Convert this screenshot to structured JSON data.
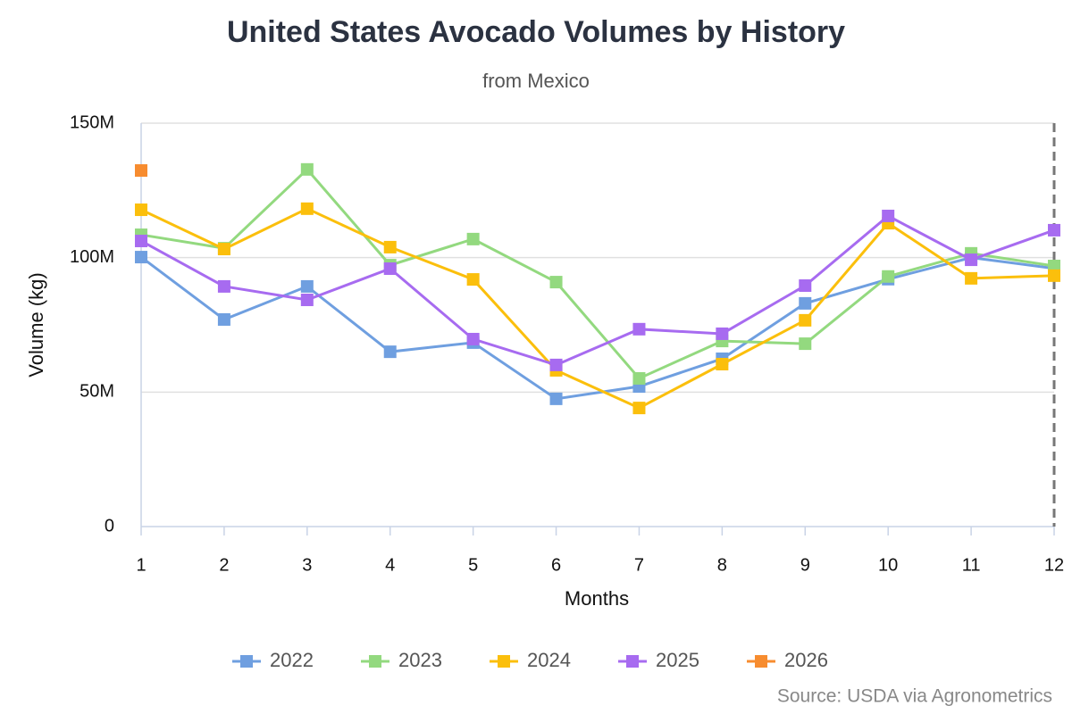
{
  "chart_data": {
    "type": "line",
    "title": "United States Avocado Volumes by History",
    "subtitle": "from Mexico",
    "x_label": "Months",
    "y_label": "Volume (kg)",
    "source": "Source: USDA via Agronometrics",
    "x": [
      1,
      2,
      3,
      4,
      5,
      6,
      7,
      8,
      9,
      10,
      11,
      12
    ],
    "xlim": [
      1,
      12
    ],
    "xticks": [
      1,
      2,
      3,
      4,
      5,
      6,
      7,
      8,
      9,
      10,
      11,
      12
    ],
    "ylim": [
      0,
      150000000
    ],
    "yticks": [
      0,
      {
        "value": 50000000,
        "label": "50M"
      },
      {
        "value": 100000000,
        "label": "100M"
      },
      {
        "value": 150000000,
        "label": "150M"
      }
    ],
    "grid": true,
    "legend": "bottom",
    "series": [
      {
        "name": "2022",
        "color": "#6f9fe0",
        "values": [
          100200000,
          77000000,
          89300000,
          65000000,
          68400000,
          47500000,
          52100000,
          62400000,
          83000000,
          92000000,
          100000000,
          96000000
        ]
      },
      {
        "name": "2023",
        "color": "#93d97f",
        "values": [
          108500000,
          103500000,
          132800000,
          97200000,
          106900000,
          90900000,
          55100000,
          69000000,
          68000000,
          93000000,
          101600000,
          96900000
        ]
      },
      {
        "name": "2024",
        "color": "#fbbf0c",
        "values": [
          117800000,
          103200000,
          118200000,
          103900000,
          91900000,
          58100000,
          44100000,
          60400000,
          76700000,
          112800000,
          92300000,
          93300000
        ]
      },
      {
        "name": "2025",
        "color": "#a76bf0",
        "values": [
          106200000,
          89300000,
          84300000,
          95900000,
          69700000,
          60100000,
          73400000,
          71700000,
          89600000,
          115500000,
          99200000,
          110200000
        ]
      },
      {
        "name": "2026",
        "color": "#f78c2f",
        "values": [
          132400000,
          null,
          null,
          null,
          null,
          null,
          null,
          null,
          null,
          null,
          null,
          null
        ]
      }
    ]
  }
}
